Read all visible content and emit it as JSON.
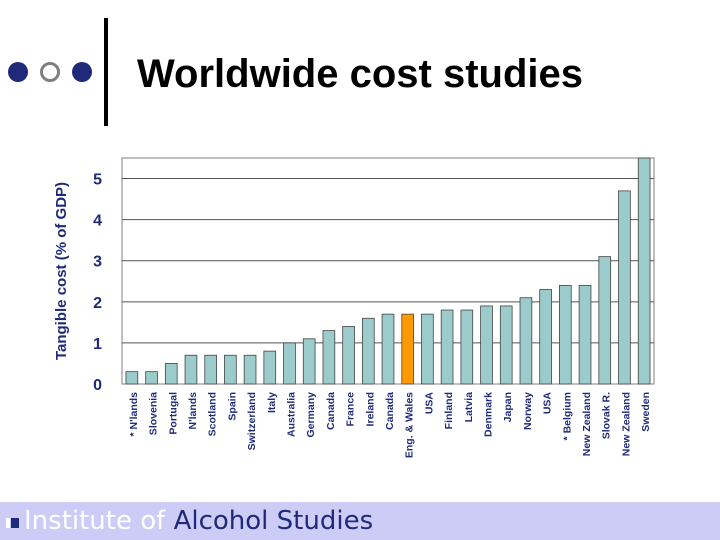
{
  "header": {
    "title": "Worldwide cost studies"
  },
  "footer": {
    "org_prefix": "Institute of ",
    "org_name": "Alcohol Studies"
  },
  "colors": {
    "bar": "#9bcbcb",
    "highlight_bar": "#ff9900",
    "dark_blue": "#1f2a7a",
    "footer_bg": "#ccccf6"
  },
  "chart_data": {
    "type": "bar",
    "ylabel": "Tangible cost (% of GDP)",
    "xlabel": "",
    "ylim": [
      0,
      5.5
    ],
    "yticks": [
      0,
      1,
      2,
      3,
      4,
      5
    ],
    "grid": true,
    "categories": [
      "* N'lands",
      "Slovenia",
      "Portugal",
      "N'lands",
      "Scotland",
      "Spain",
      "Switzerland",
      "Italy",
      "Australia",
      "Germany",
      "Canada",
      "France",
      "Ireland",
      "Canada",
      "Eng. & Wales",
      "USA",
      "Finland",
      "Latvia",
      "Denmark",
      "Japan",
      "Norway",
      "USA",
      "* Belgium",
      "New Zealand",
      "Slovak R.",
      "New Zealand",
      "Sweden"
    ],
    "values": [
      0.3,
      0.3,
      0.5,
      0.7,
      0.7,
      0.7,
      0.7,
      0.8,
      1.0,
      1.1,
      1.3,
      1.4,
      1.6,
      1.7,
      1.7,
      1.7,
      1.8,
      1.8,
      1.9,
      1.9,
      2.1,
      2.3,
      2.4,
      2.4,
      3.1,
      4.7,
      5.5
    ],
    "highlight_category": "Eng. & Wales"
  }
}
